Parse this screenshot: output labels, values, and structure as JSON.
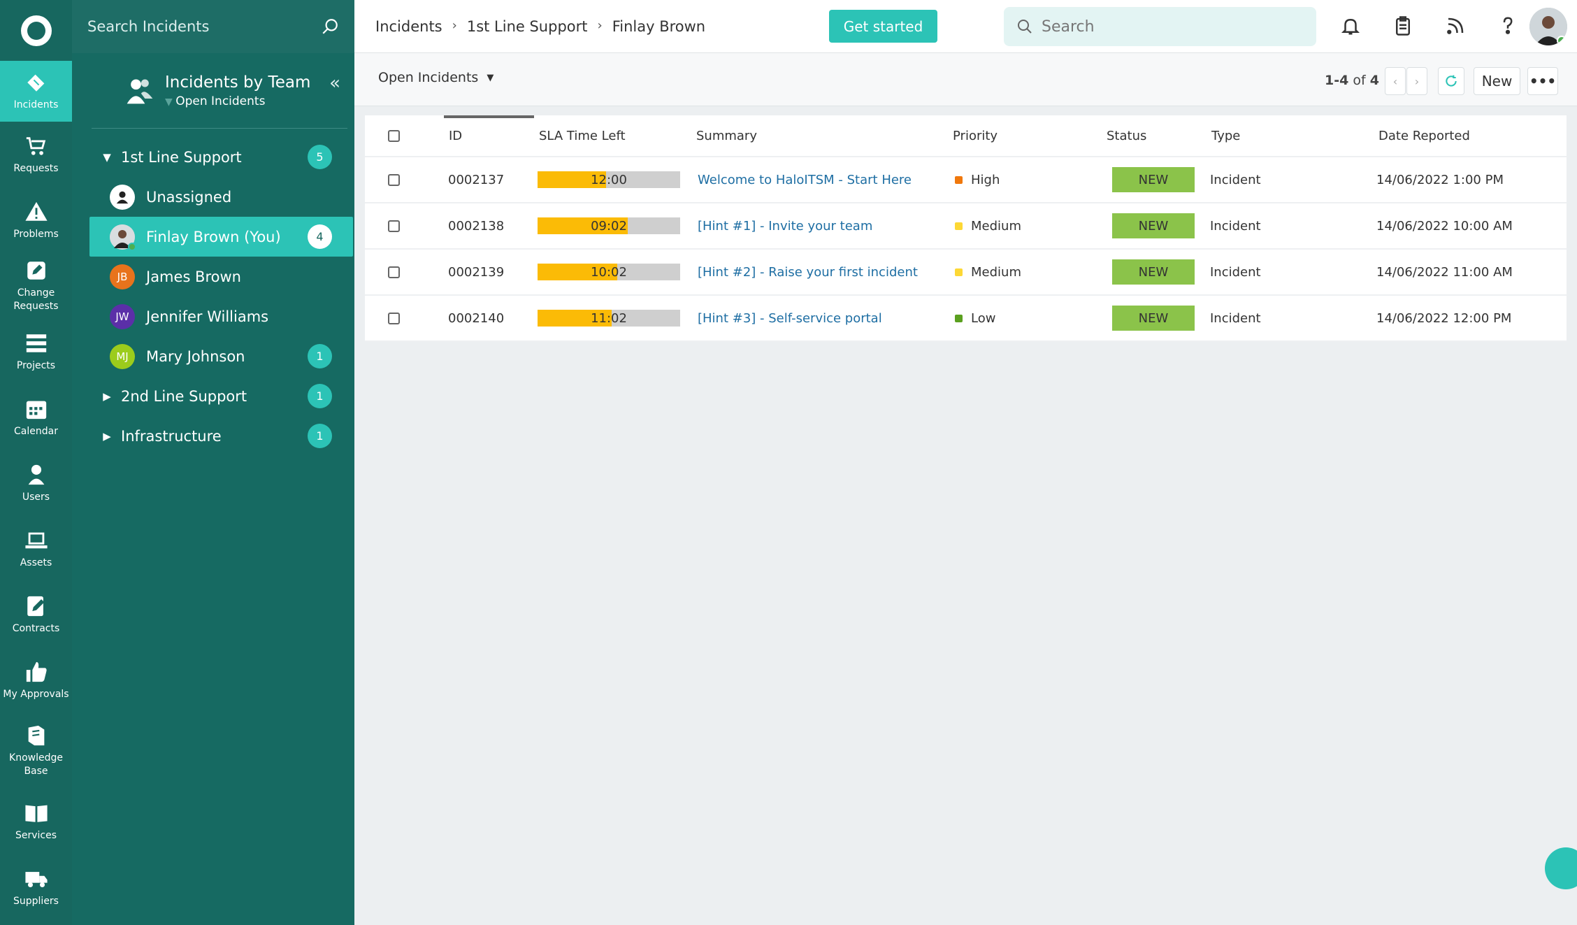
{
  "rail": {
    "items": [
      {
        "label": "Incidents",
        "icon": "ticket-icon"
      },
      {
        "label": "Requests",
        "icon": "cart-icon"
      },
      {
        "label": "Problems",
        "icon": "warning-icon"
      },
      {
        "label": "Change Requests",
        "icon": "edit-icon"
      },
      {
        "label": "Projects",
        "icon": "projects-icon"
      },
      {
        "label": "Calendar",
        "icon": "calendar-icon"
      },
      {
        "label": "Users",
        "icon": "user-icon"
      },
      {
        "label": "Assets",
        "icon": "laptop-icon"
      },
      {
        "label": "Contracts",
        "icon": "contract-icon"
      },
      {
        "label": "My Approvals",
        "icon": "thumbs-up-icon"
      },
      {
        "label": "Knowledge Base",
        "icon": "book-icon"
      },
      {
        "label": "Services",
        "icon": "open-book-icon"
      },
      {
        "label": "Suppliers",
        "icon": "truck-icon"
      }
    ]
  },
  "panel": {
    "search_placeholder": "Search Incidents",
    "title": "Incidents by Team",
    "subtitle": "Open Incidents",
    "teams": [
      {
        "label": "1st Line Support",
        "count": "5",
        "expanded": true
      },
      {
        "label": "2nd Line Support",
        "count": "1"
      },
      {
        "label": "Infrastructure",
        "count": "1"
      }
    ],
    "members": [
      {
        "label": "Unassigned",
        "initials": "",
        "color": "#ffffff",
        "count": ""
      },
      {
        "label": "Finlay Brown (You)",
        "initials": "",
        "color": "#b9c2c6",
        "count": "4"
      },
      {
        "label": "James Brown",
        "initials": "JB",
        "color": "#e8731c",
        "count": ""
      },
      {
        "label": "Jennifer Williams",
        "initials": "JW",
        "color": "#5b2fa8",
        "count": ""
      },
      {
        "label": "Mary Johnson",
        "initials": "MJ",
        "color": "#9ccc1c",
        "count": "1"
      }
    ]
  },
  "topbar": {
    "breadcrumbs": [
      "Incidents",
      "1st Line Support",
      "Finlay Brown"
    ],
    "get_started": "Get started",
    "search_placeholder": "Search"
  },
  "subbar": {
    "view": "Open Incidents",
    "range": "1-4",
    "of": "of",
    "total": "4",
    "new_label": "New",
    "more_label": "•••"
  },
  "table": {
    "columns": [
      "ID",
      "SLA Time Left",
      "Summary",
      "Priority",
      "Status",
      "Type",
      "Date Reported"
    ],
    "rows": [
      {
        "id": "0002137",
        "sla": "12:00",
        "sla_fraction": 0.48,
        "summary": "Welcome to HaloITSM - Start Here",
        "priority": "High",
        "priority_color": "#f0780c",
        "status": "NEW",
        "type": "Incident",
        "date": "14/06/2022 1:00 PM"
      },
      {
        "id": "0002138",
        "sla": "09:02",
        "sla_fraction": 0.63,
        "summary": "[Hint #1] - Invite your team",
        "priority": "Medium",
        "priority_color": "#fdd835",
        "status": "NEW",
        "type": "Incident",
        "date": "14/06/2022 10:00 AM"
      },
      {
        "id": "0002139",
        "sla": "10:02",
        "sla_fraction": 0.56,
        "summary": "[Hint #2] - Raise your first incident",
        "priority": "Medium",
        "priority_color": "#fdd835",
        "status": "NEW",
        "type": "Incident",
        "date": "14/06/2022 11:00 AM"
      },
      {
        "id": "0002140",
        "sla": "11:02",
        "sla_fraction": 0.52,
        "summary": "[Hint #3] - Self-service portal",
        "priority": "Low",
        "priority_color": "#5ba01f",
        "status": "NEW",
        "type": "Incident",
        "date": "14/06/2022 12:00 PM"
      }
    ]
  }
}
